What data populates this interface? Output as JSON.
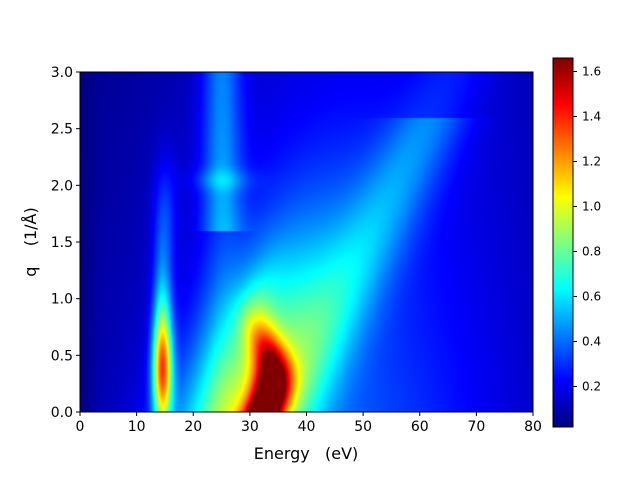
{
  "chart_data": {
    "type": "heatmap",
    "xlabel": "Energy   (eV)",
    "ylabel": "q    (1/Å)",
    "xlim": [
      0,
      80
    ],
    "ylim": [
      0,
      3.0
    ],
    "xticks": [
      0,
      10,
      20,
      30,
      40,
      50,
      60,
      70,
      80
    ],
    "yticks": [
      0.0,
      0.5,
      1.0,
      1.5,
      2.0,
      2.5,
      3.0
    ],
    "xtick_labels": [
      "0",
      "10",
      "20",
      "30",
      "40",
      "50",
      "60",
      "70",
      "80"
    ],
    "ytick_labels": [
      "0.0",
      "0.5",
      "1.0",
      "1.5",
      "2.0",
      "2.5",
      "3.0"
    ],
    "colormap": "jet",
    "colorbar": {
      "range": [
        0.02,
        1.66
      ],
      "ticks": [
        0.2,
        0.4,
        0.6,
        0.8,
        1.0,
        1.2,
        1.4,
        1.6
      ],
      "tick_labels": [
        "0.2",
        "0.4",
        "0.6",
        "0.8",
        "1.0",
        "1.2",
        "1.4",
        "1.6"
      ]
    },
    "features": [
      {
        "kind": "peak",
        "energy": 14.5,
        "q": 0.35,
        "intensity": 0.95,
        "q_extent": 1.3
      },
      {
        "kind": "peak",
        "energy": 32.5,
        "q": 0.1,
        "intensity": 1.66,
        "q_extent": 0.9
      },
      {
        "kind": "broad",
        "energy_range": [
          20,
          48
        ],
        "q_range": [
          0,
          1.7
        ],
        "intensity": 0.6
      },
      {
        "kind": "ridge",
        "energy": 25,
        "q_range": [
          1.7,
          3.0
        ],
        "intensity": 0.3
      }
    ],
    "grid": false
  }
}
